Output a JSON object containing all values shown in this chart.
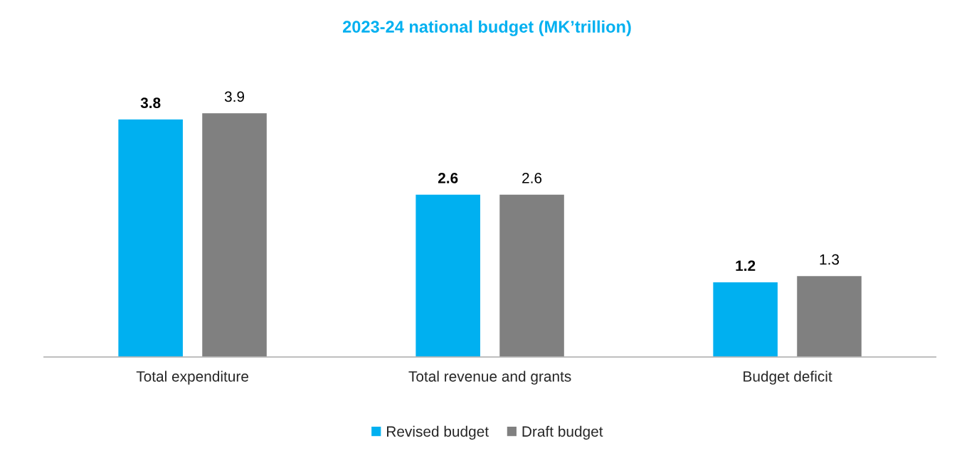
{
  "chart_data": {
    "type": "bar",
    "title": "2023-24 national budget (MK’trillion)",
    "categories": [
      "Total expenditure",
      "Total revenue and grants",
      "Budget deficit"
    ],
    "series": [
      {
        "name": "Revised budget",
        "color": "#00b0f0",
        "values": [
          3.8,
          2.6,
          1.2
        ]
      },
      {
        "name": "Draft budget",
        "color": "#808080",
        "values": [
          3.9,
          2.6,
          1.3
        ]
      }
    ],
    "data_labels": true,
    "legend": "bottom",
    "grid": false
  }
}
